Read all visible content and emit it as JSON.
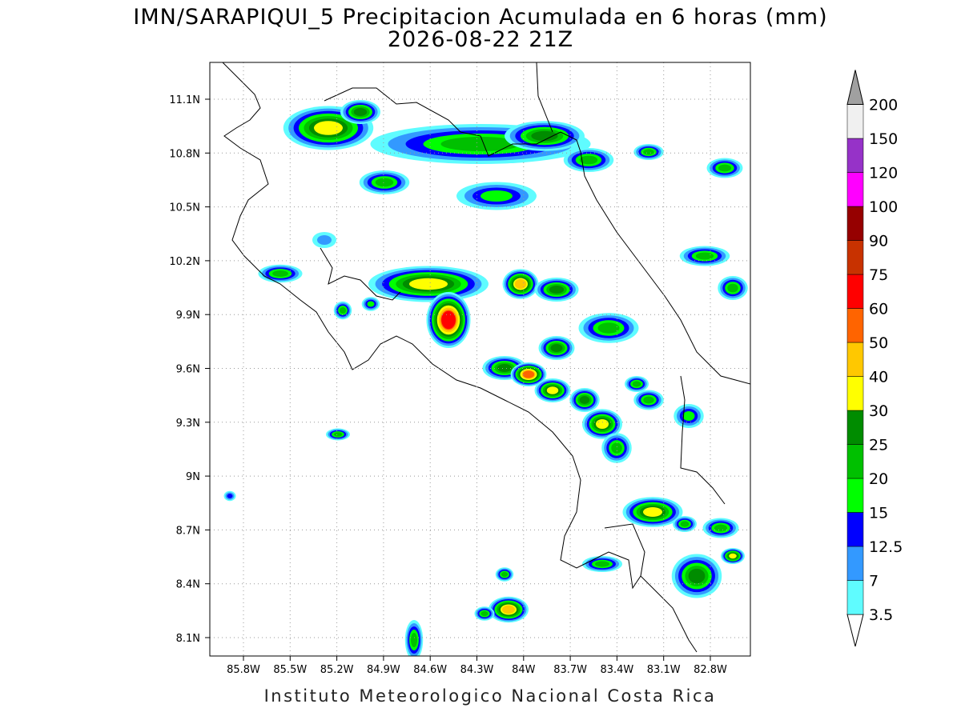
{
  "title": "IMN/SARAPIQUI_5 Precipitacion Acumulada en 6 horas (mm)",
  "subtitle": "2026-08-22 21Z",
  "map": {
    "lon_ticks": [
      "85.8W",
      "85.5W",
      "85.2W",
      "84.9W",
      "84.6W",
      "84.3W",
      "84W",
      "83.7W",
      "83.4W",
      "83.1W",
      "82.8W"
    ],
    "lat_ticks": [
      "11.1N",
      "10.8N",
      "10.5N",
      "10.2N",
      "9.9N",
      "9.6N",
      "9.3N",
      "9N",
      "8.7N",
      "8.4N",
      "8.1N"
    ]
  },
  "colorbar": {
    "levels": [
      3.5,
      7,
      12.5,
      15,
      20,
      25,
      30,
      40,
      50,
      60,
      75,
      90,
      100,
      120,
      150,
      200
    ],
    "colors": [
      "#ffffff",
      "#5ffcff",
      "#3399ff",
      "#0000ff",
      "#00ff00",
      "#00c000",
      "#008c00",
      "#ffff00",
      "#ffc800",
      "#ff6400",
      "#ff0000",
      "#c83200",
      "#960000",
      "#ff00ff",
      "#9632c8",
      "#f0f0f0",
      "#a0a0a0"
    ]
  },
  "footer": "Instituto Meteorologico Nacional Costa Rica"
}
